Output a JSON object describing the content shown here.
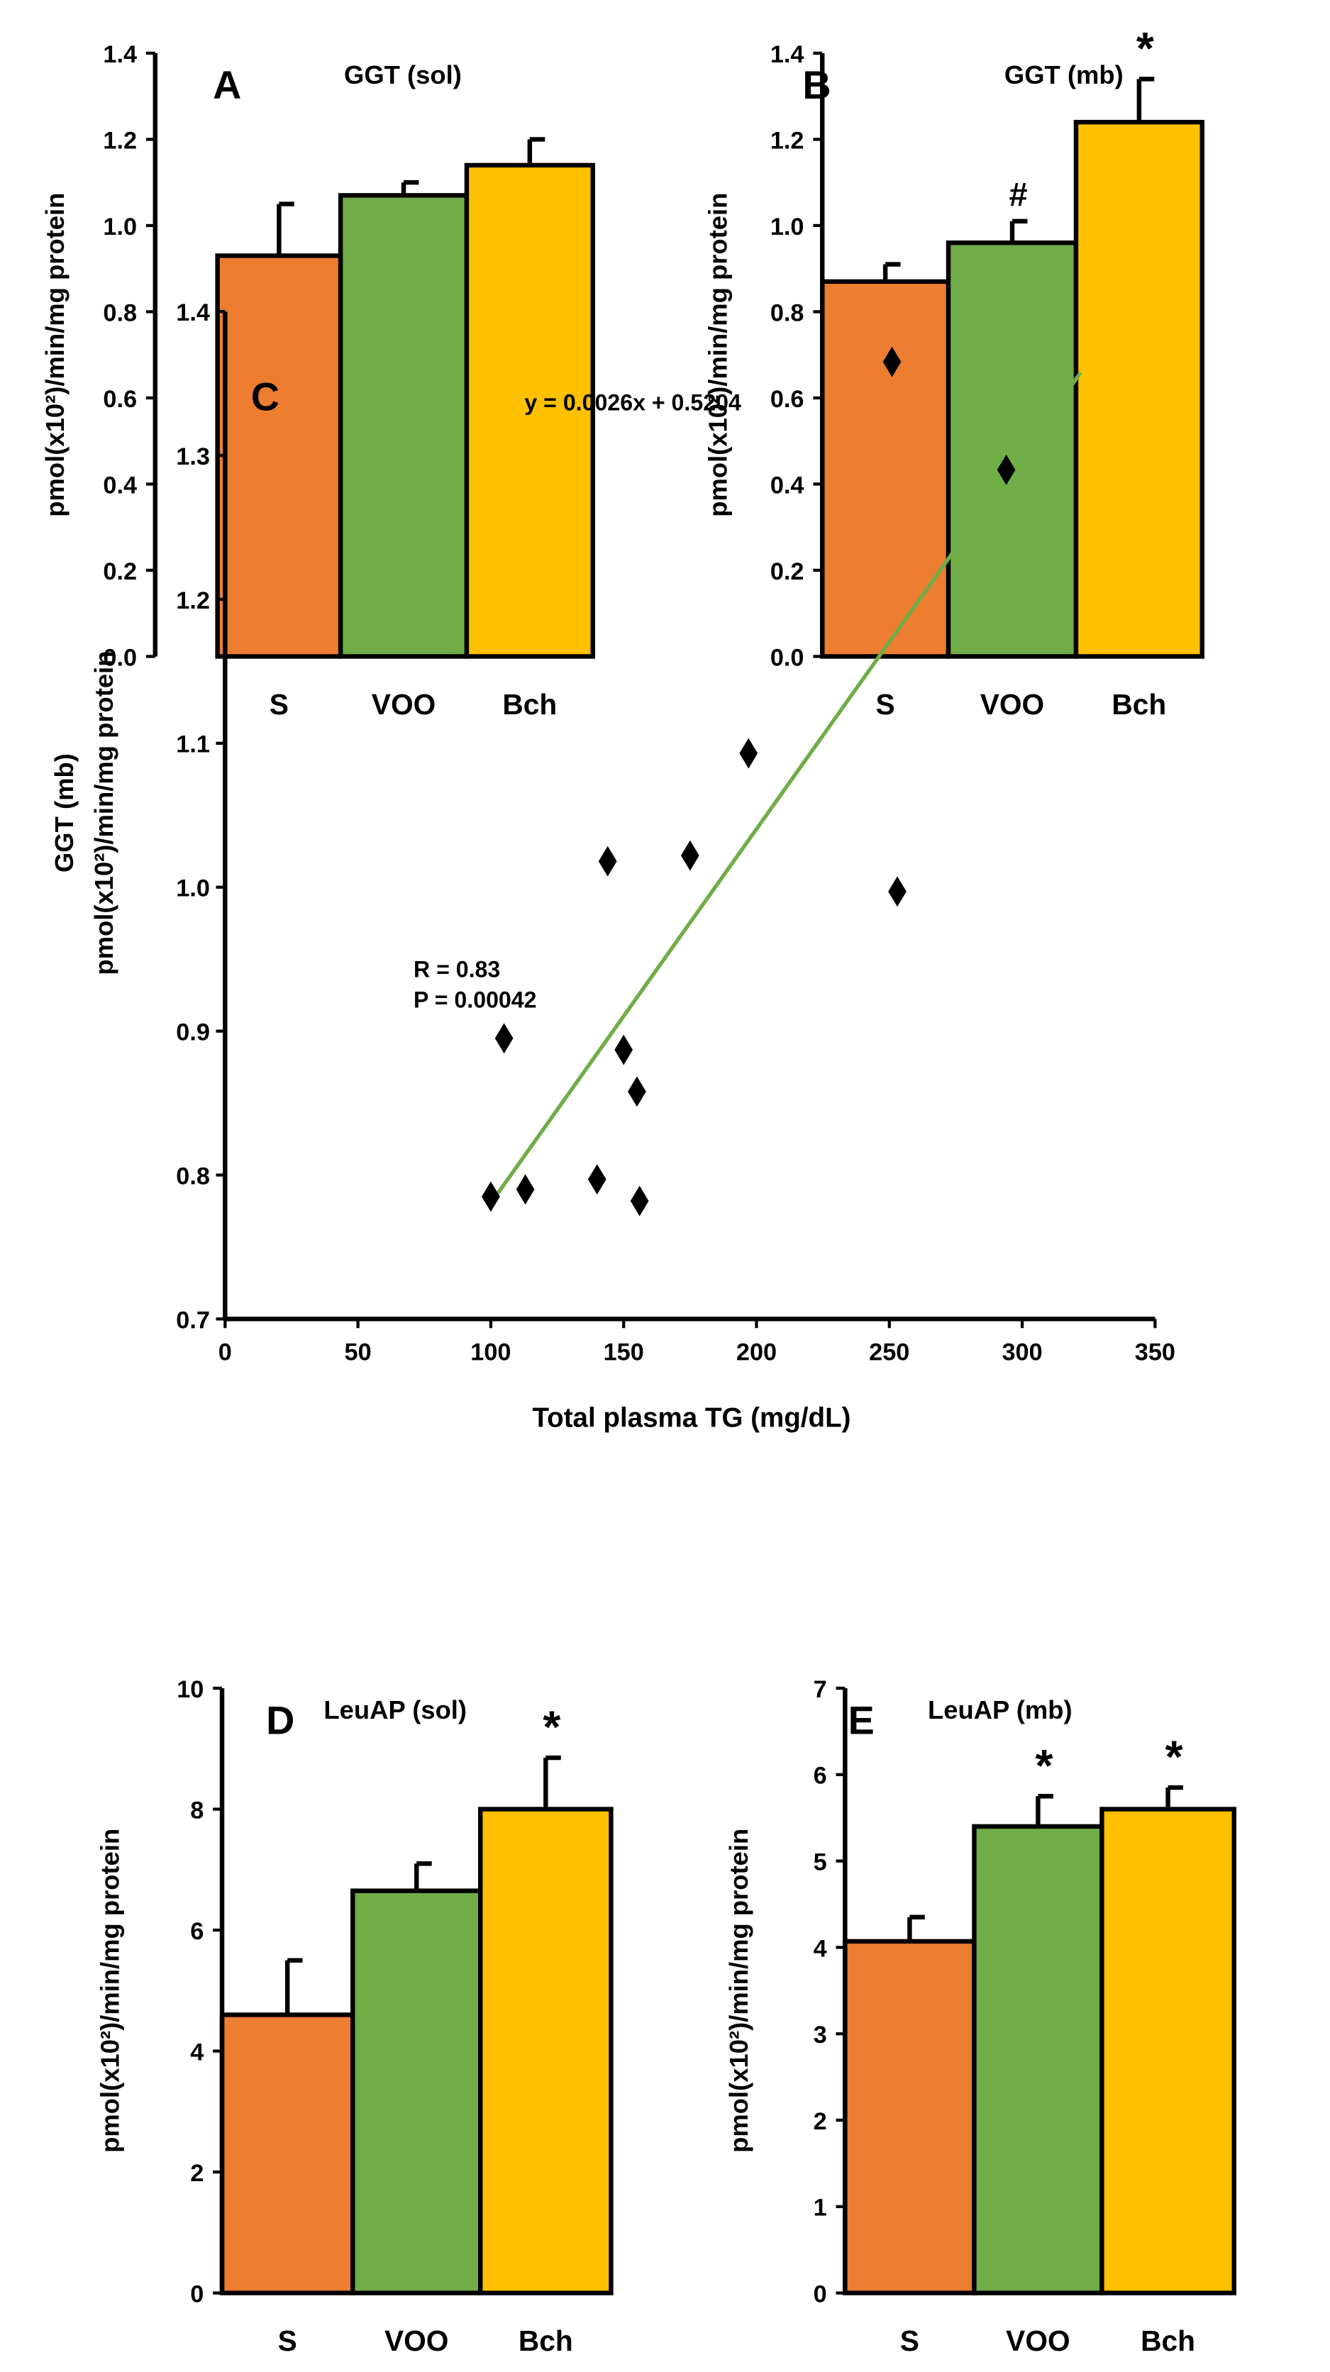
{
  "colors": {
    "S": "#ED7D31",
    "VOO": "#70AD47",
    "Bch": "#FFC000",
    "line": "#70AD47"
  },
  "chart_data": [
    {
      "type": "bar",
      "panel": "A",
      "title": "GGT (sol)",
      "ylabel": "pmol(x10²)/min/mg protein",
      "categories": [
        "S",
        "VOO",
        "Bch"
      ],
      "values": [
        0.93,
        1.07,
        1.14
      ],
      "errors": [
        0.12,
        0.03,
        0.06
      ],
      "marks": [
        "",
        "",
        ""
      ],
      "ylim": [
        0,
        1.4
      ],
      "yticks": [
        "0.0",
        "0.2",
        "0.4",
        "0.6",
        "0.8",
        "1.0",
        "1.2",
        "1.4"
      ]
    },
    {
      "type": "bar",
      "panel": "B",
      "title": "GGT (mb)",
      "ylabel": "pmol(x10²)/min/mg protein",
      "categories": [
        "S",
        "VOO",
        "Bch"
      ],
      "values": [
        0.87,
        0.96,
        1.24
      ],
      "errors": [
        0.04,
        0.05,
        0.1
      ],
      "marks": [
        "",
        "#",
        "*"
      ],
      "ylim": [
        0,
        1.4
      ],
      "yticks": [
        "0.0",
        "0.2",
        "0.4",
        "0.6",
        "0.8",
        "1.0",
        "1.2",
        "1.4"
      ]
    },
    {
      "type": "scatter",
      "panel": "C",
      "ylabel": "GGT (mb)",
      "ylabel2": "pmol(x10²)/min/mg protein",
      "xlabel": "Total plasma TG (mg/dL)",
      "equation": "y = 0.0026x + 0.5204",
      "r": "R = 0.83",
      "p": "P = 0.00042",
      "x": [
        100,
        105,
        113,
        140,
        144,
        150,
        155,
        156,
        175,
        197,
        251,
        253,
        294
      ],
      "y": [
        0.785,
        0.895,
        0.79,
        0.797,
        1.018,
        0.887,
        0.858,
        0.782,
        1.022,
        1.093,
        1.365,
        0.997,
        1.29
      ],
      "fit": {
        "slope": 0.0026,
        "intercept": 0.5204,
        "x_range": [
          100,
          322
        ]
      },
      "xlim": [
        0,
        350
      ],
      "ylim": [
        0.7,
        1.4
      ],
      "xticks": [
        "0",
        "50",
        "100",
        "150",
        "200",
        "250",
        "300",
        "350"
      ],
      "yticks": [
        "0.7",
        "0.8",
        "0.9",
        "1.0",
        "1.1",
        "1.2",
        "1.3",
        "1.4"
      ]
    },
    {
      "type": "bar",
      "panel": "D",
      "title": "LeuAP (sol)",
      "ylabel": "pmol(x10²)/min/mg protein",
      "categories": [
        "S",
        "VOO",
        "Bch"
      ],
      "values": [
        4.6,
        6.65,
        8.0
      ],
      "errors": [
        0.9,
        0.45,
        0.85
      ],
      "marks": [
        "",
        "",
        "*"
      ],
      "ylim": [
        0,
        10
      ],
      "yticks": [
        "0",
        "2",
        "4",
        "6",
        "8",
        "10"
      ]
    },
    {
      "type": "bar",
      "panel": "E",
      "title": "LeuAP (mb)",
      "ylabel": "pmol(x10²)/min/mg protein",
      "categories": [
        "S",
        "VOO",
        "Bch"
      ],
      "values": [
        4.07,
        5.4,
        5.6
      ],
      "errors": [
        0.28,
        0.35,
        0.25
      ],
      "marks": [
        "",
        "*",
        "*"
      ],
      "ylim": [
        0,
        7
      ],
      "yticks": [
        "0",
        "1",
        "2",
        "3",
        "4",
        "5",
        "6",
        "7"
      ]
    }
  ]
}
